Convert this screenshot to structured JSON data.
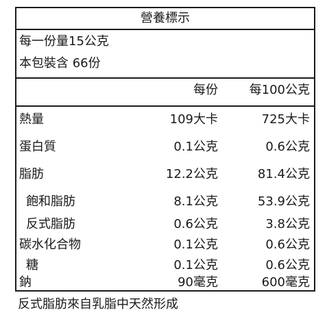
{
  "label": {
    "title": "營養標示",
    "serving_size": "每一份量15公克",
    "servings_per_package": "本包裝含 66份",
    "col_per_serving": "每份",
    "col_per_100g": "每100公克",
    "rows": [
      {
        "name": "熱量",
        "per_serving": "109大卡",
        "per_100g": "725大卡"
      },
      {
        "name": "蛋白質",
        "per_serving": "0.1公克",
        "per_100g": "0.6公克"
      },
      {
        "name": "脂肪",
        "per_serving": "12.2公克",
        "per_100g": "81.4公克"
      },
      {
        "name": "飽和脂肪",
        "per_serving": "8.1公克",
        "per_100g": "53.9公克"
      },
      {
        "name": "反式脂肪",
        "per_serving": "0.6公克",
        "per_100g": "3.8公克"
      },
      {
        "name": "碳水化合物",
        "per_serving": "0.1公克",
        "per_100g": "0.6公克"
      },
      {
        "name": "糖",
        "per_serving": "0.1公克",
        "per_100g": "0.6公克"
      },
      {
        "name": "鈉",
        "per_serving": "90毫克",
        "per_100g": "600毫克"
      }
    ]
  },
  "footnote": "反式脂肪來自乳脂中天然形成"
}
